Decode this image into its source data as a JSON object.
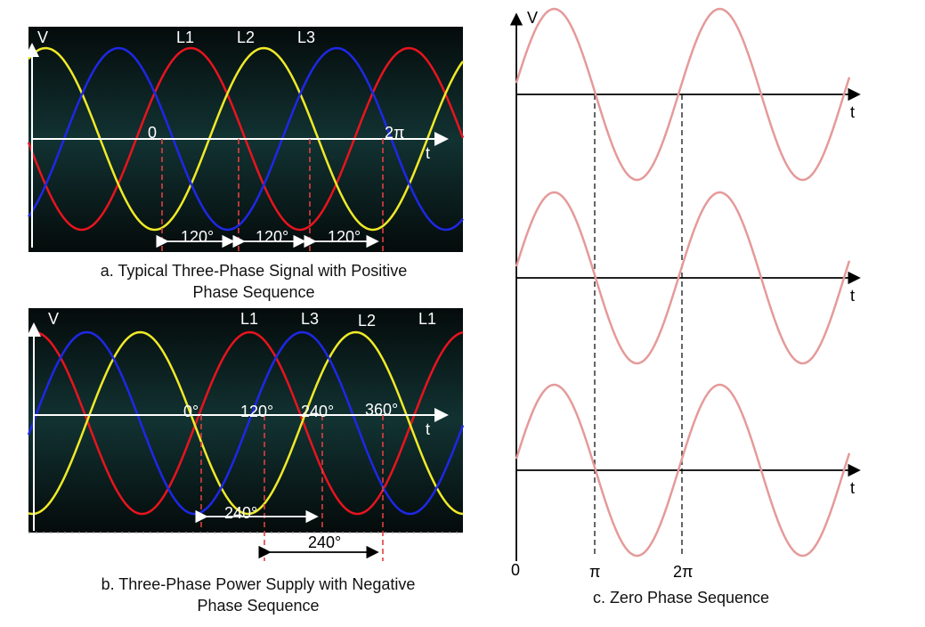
{
  "panel_a": {
    "axis_v": "V",
    "axis_t": "t",
    "phase_labels": [
      "L1",
      "L2",
      "L3"
    ],
    "angle_labels": [
      "0",
      "2π"
    ],
    "spacing_labels": [
      "120°",
      "120°",
      "120°"
    ],
    "caption_line1": "a. Typical Three-Phase Signal with Positive",
    "caption_line2": "Phase Sequence"
  },
  "panel_b": {
    "axis_v": "V",
    "axis_t": "t",
    "phase_labels": [
      "L1",
      "L3",
      "L2",
      "L1"
    ],
    "angle_labels": [
      "0°",
      "120°",
      "240°",
      "360°"
    ],
    "spacing_labels": [
      "240°",
      "240°"
    ],
    "caption_line1": "b. Three-Phase Power Supply with Negative",
    "caption_line2": "Phase Sequence"
  },
  "panel_c": {
    "axis_v": "V",
    "axis_t": "t",
    "x_labels": [
      "0",
      "π",
      "2π"
    ],
    "caption": "c. Zero Phase Sequence"
  },
  "colors": {
    "phase_red": "#e8141e",
    "phase_yellow": "#f0ea28",
    "phase_blue": "#1e28e6",
    "zero_seq": "#e59a9a",
    "scope_bg": "#0c1e1e",
    "marker": "#e04040"
  }
}
